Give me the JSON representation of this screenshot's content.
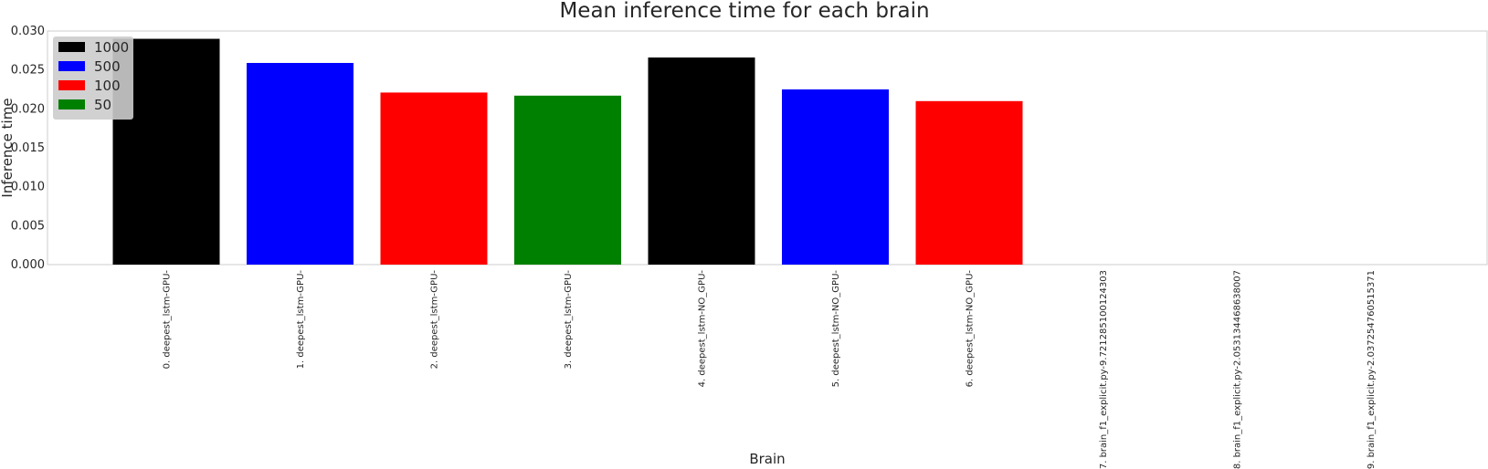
{
  "chart_data": {
    "type": "bar",
    "title": "Mean inference time for each brain",
    "xlabel": "Brain",
    "ylabel": "Inference time",
    "ylim": [
      0,
      0.03
    ],
    "yticks": [
      "0.000",
      "0.005",
      "0.010",
      "0.015",
      "0.020",
      "0.025",
      "0.030"
    ],
    "grid": false,
    "legend_position": "top-left",
    "categories": [
      "0. deepest_lstm-GPU-",
      "1. deepest_lstm-GPU-",
      "2. deepest_lstm-GPU-",
      "3. deepest_lstm-GPU-",
      "4. deepest_lstm-NO_GPU-",
      "5. deepest_lstm-NO_GPU-",
      "6. deepest_lstm-NO_GPU-",
      "7. brain_f1_explicit.py-9.721285100124303",
      "8. brain_f1_explicit.py-2.053134468638007",
      "9. brain_f1_explicit.py-2.037254760515371"
    ],
    "values": [
      0.029,
      0.0259,
      0.0221,
      0.0217,
      0.0266,
      0.0225,
      0.021,
      0,
      0,
      0
    ],
    "bar_colors": [
      "#000000",
      "#0000ff",
      "#ff0000",
      "#008000",
      "#000000",
      "#0000ff",
      "#ff0000",
      "#000000",
      "#0000ff",
      "#ff0000"
    ],
    "legend": [
      {
        "label": "1000",
        "color": "#000000"
      },
      {
        "label": "500",
        "color": "#0000ff"
      },
      {
        "label": "100",
        "color": "#ff0000"
      },
      {
        "label": "50",
        "color": "#008000"
      }
    ]
  }
}
